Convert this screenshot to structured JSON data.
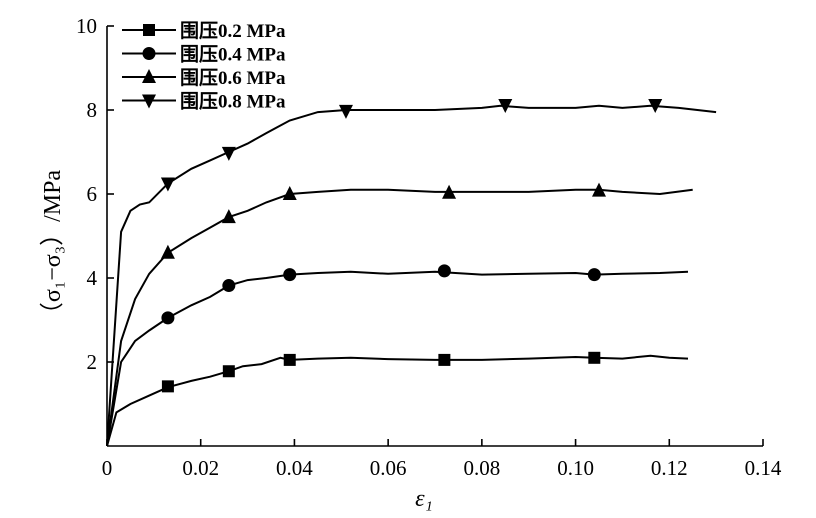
{
  "chart_data": {
    "type": "line",
    "title": "",
    "xlabel": "ε₁",
    "ylabel": "（σ₁−σ₃）/MPa",
    "xlim": [
      0,
      0.14
    ],
    "ylim": [
      0,
      10
    ],
    "x_ticks": [
      "0",
      "0.02",
      "0.04",
      "0.06",
      "0.08",
      "0.10",
      "0.12",
      "0.14"
    ],
    "y_ticks": [
      "2",
      "4",
      "6",
      "8",
      "10"
    ],
    "grid": false,
    "legend_position": "top-left",
    "series": [
      {
        "name": "围压0.2 MPa",
        "marker": "square",
        "color": "#000000",
        "x": [
          0,
          0.002,
          0.005,
          0.009,
          0.013,
          0.018,
          0.022,
          0.026,
          0.029,
          0.033,
          0.037,
          0.039,
          0.045,
          0.052,
          0.06,
          0.07,
          0.08,
          0.09,
          0.1,
          0.104,
          0.11,
          0.116,
          0.12,
          0.124
        ],
        "y": [
          0,
          0.8,
          1.0,
          1.2,
          1.4,
          1.55,
          1.65,
          1.78,
          1.9,
          1.95,
          2.1,
          2.05,
          2.08,
          2.1,
          2.07,
          2.05,
          2.05,
          2.08,
          2.12,
          2.1,
          2.08,
          2.15,
          2.1,
          2.08
        ],
        "marker_x": [
          0.013,
          0.026,
          0.039,
          0.072,
          0.104
        ],
        "marker_y": [
          1.42,
          1.78,
          2.05,
          2.05,
          2.1
        ]
      },
      {
        "name": "围压0.4 MPa",
        "marker": "circle",
        "color": "#000000",
        "x": [
          0,
          0.003,
          0.006,
          0.009,
          0.013,
          0.018,
          0.022,
          0.026,
          0.03,
          0.034,
          0.039,
          0.045,
          0.052,
          0.06,
          0.07,
          0.08,
          0.09,
          0.1,
          0.104,
          0.11,
          0.118,
          0.124
        ],
        "y": [
          0,
          2.0,
          2.5,
          2.75,
          3.05,
          3.35,
          3.55,
          3.82,
          3.95,
          4.0,
          4.08,
          4.12,
          4.15,
          4.1,
          4.15,
          4.08,
          4.1,
          4.12,
          4.08,
          4.1,
          4.12,
          4.15
        ],
        "marker_x": [
          0.013,
          0.026,
          0.039,
          0.072,
          0.104
        ],
        "marker_y": [
          3.05,
          3.82,
          4.08,
          4.17,
          4.08
        ]
      },
      {
        "name": "围压0.6 MPa",
        "marker": "triangle-up",
        "color": "#000000",
        "x": [
          0,
          0.003,
          0.006,
          0.009,
          0.013,
          0.018,
          0.022,
          0.026,
          0.03,
          0.034,
          0.039,
          0.045,
          0.052,
          0.06,
          0.07,
          0.08,
          0.09,
          0.1,
          0.105,
          0.11,
          0.118,
          0.125
        ],
        "y": [
          0,
          2.5,
          3.5,
          4.1,
          4.6,
          4.95,
          5.2,
          5.45,
          5.6,
          5.8,
          6.0,
          6.05,
          6.1,
          6.1,
          6.05,
          6.05,
          6.05,
          6.1,
          6.1,
          6.05,
          6.0,
          6.1
        ],
        "marker_x": [
          0.013,
          0.026,
          0.039,
          0.073,
          0.105
        ],
        "marker_y": [
          4.6,
          5.45,
          6.0,
          6.03,
          6.08
        ]
      },
      {
        "name": "围压0.8 MPa",
        "marker": "triangle-down",
        "color": "#000000",
        "x": [
          0,
          0.003,
          0.005,
          0.007,
          0.009,
          0.013,
          0.018,
          0.022,
          0.026,
          0.03,
          0.034,
          0.039,
          0.045,
          0.051,
          0.06,
          0.07,
          0.08,
          0.084,
          0.09,
          0.1,
          0.105,
          0.11,
          0.116,
          0.122,
          0.13
        ],
        "y": [
          0,
          5.1,
          5.6,
          5.75,
          5.8,
          6.25,
          6.6,
          6.8,
          7.0,
          7.2,
          7.45,
          7.75,
          7.95,
          8.0,
          8.0,
          8.0,
          8.05,
          8.1,
          8.05,
          8.05,
          8.1,
          8.05,
          8.1,
          8.05,
          7.95
        ],
        "marker_x": [
          0.013,
          0.026,
          0.051,
          0.085,
          0.117
        ],
        "marker_y": [
          6.25,
          6.98,
          7.98,
          8.12,
          8.12
        ]
      }
    ]
  }
}
